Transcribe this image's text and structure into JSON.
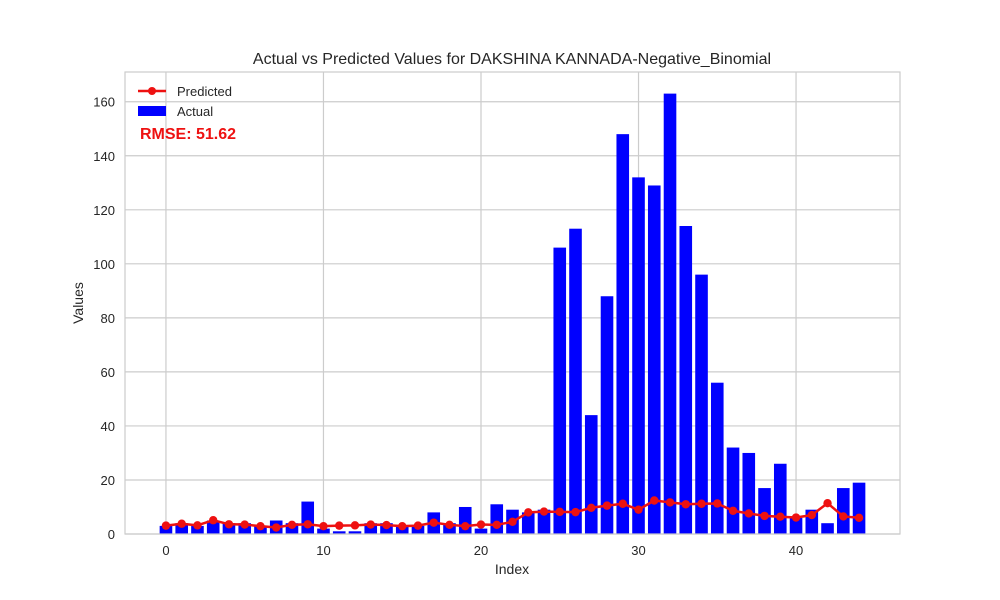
{
  "chart_data": {
    "type": "bar",
    "title": "Actual vs Predicted Values for DAKSHINA KANNADA-Negative_Binomial",
    "xlabel": "Index",
    "ylabel": "Values",
    "xlim": [
      -2.6,
      46.6
    ],
    "ylim": [
      0,
      171
    ],
    "xticks": [
      0,
      10,
      20,
      30,
      40
    ],
    "yticks": [
      0,
      20,
      40,
      60,
      80,
      100,
      120,
      140,
      160
    ],
    "grid": true,
    "legend_position": "top-left",
    "annotation": "RMSE: 51.62",
    "annotation_color": "#ee1111",
    "x": [
      0,
      1,
      2,
      3,
      4,
      5,
      6,
      7,
      8,
      9,
      10,
      11,
      12,
      13,
      14,
      15,
      16,
      17,
      18,
      19,
      20,
      21,
      22,
      23,
      24,
      25,
      26,
      27,
      28,
      29,
      30,
      31,
      32,
      33,
      34,
      35,
      36,
      37,
      38,
      39,
      40,
      41,
      42,
      43,
      44
    ],
    "series": [
      {
        "name": "Actual",
        "kind": "bar",
        "color": "#0000ff",
        "values": [
          3,
          4,
          3,
          5,
          4,
          4,
          3,
          5,
          4,
          12,
          2,
          1,
          1,
          4,
          4,
          3,
          3,
          8,
          4,
          10,
          2,
          11,
          9,
          8,
          9,
          106,
          113,
          44,
          88,
          148,
          132,
          129,
          163,
          114,
          96,
          56,
          32,
          30,
          17,
          26,
          6,
          9,
          4,
          17,
          19
        ]
      },
      {
        "name": "Predicted",
        "kind": "line",
        "color": "#ee1111",
        "values": [
          3.1,
          3.8,
          3.2,
          5.1,
          3.6,
          3.5,
          2.9,
          2.4,
          3.4,
          3.6,
          2.9,
          3.1,
          3.2,
          3.5,
          3.3,
          2.9,
          3.1,
          4.2,
          3.4,
          2.9,
          3.5,
          3.4,
          4.5,
          8.0,
          8.3,
          8.2,
          8.1,
          9.7,
          10.5,
          11.2,
          9.0,
          12.4,
          11.7,
          11.0,
          11.2,
          11.3,
          8.6,
          7.6,
          6.7,
          6.4,
          6.1,
          7.0,
          11.4,
          6.5,
          6.0
        ]
      }
    ]
  }
}
